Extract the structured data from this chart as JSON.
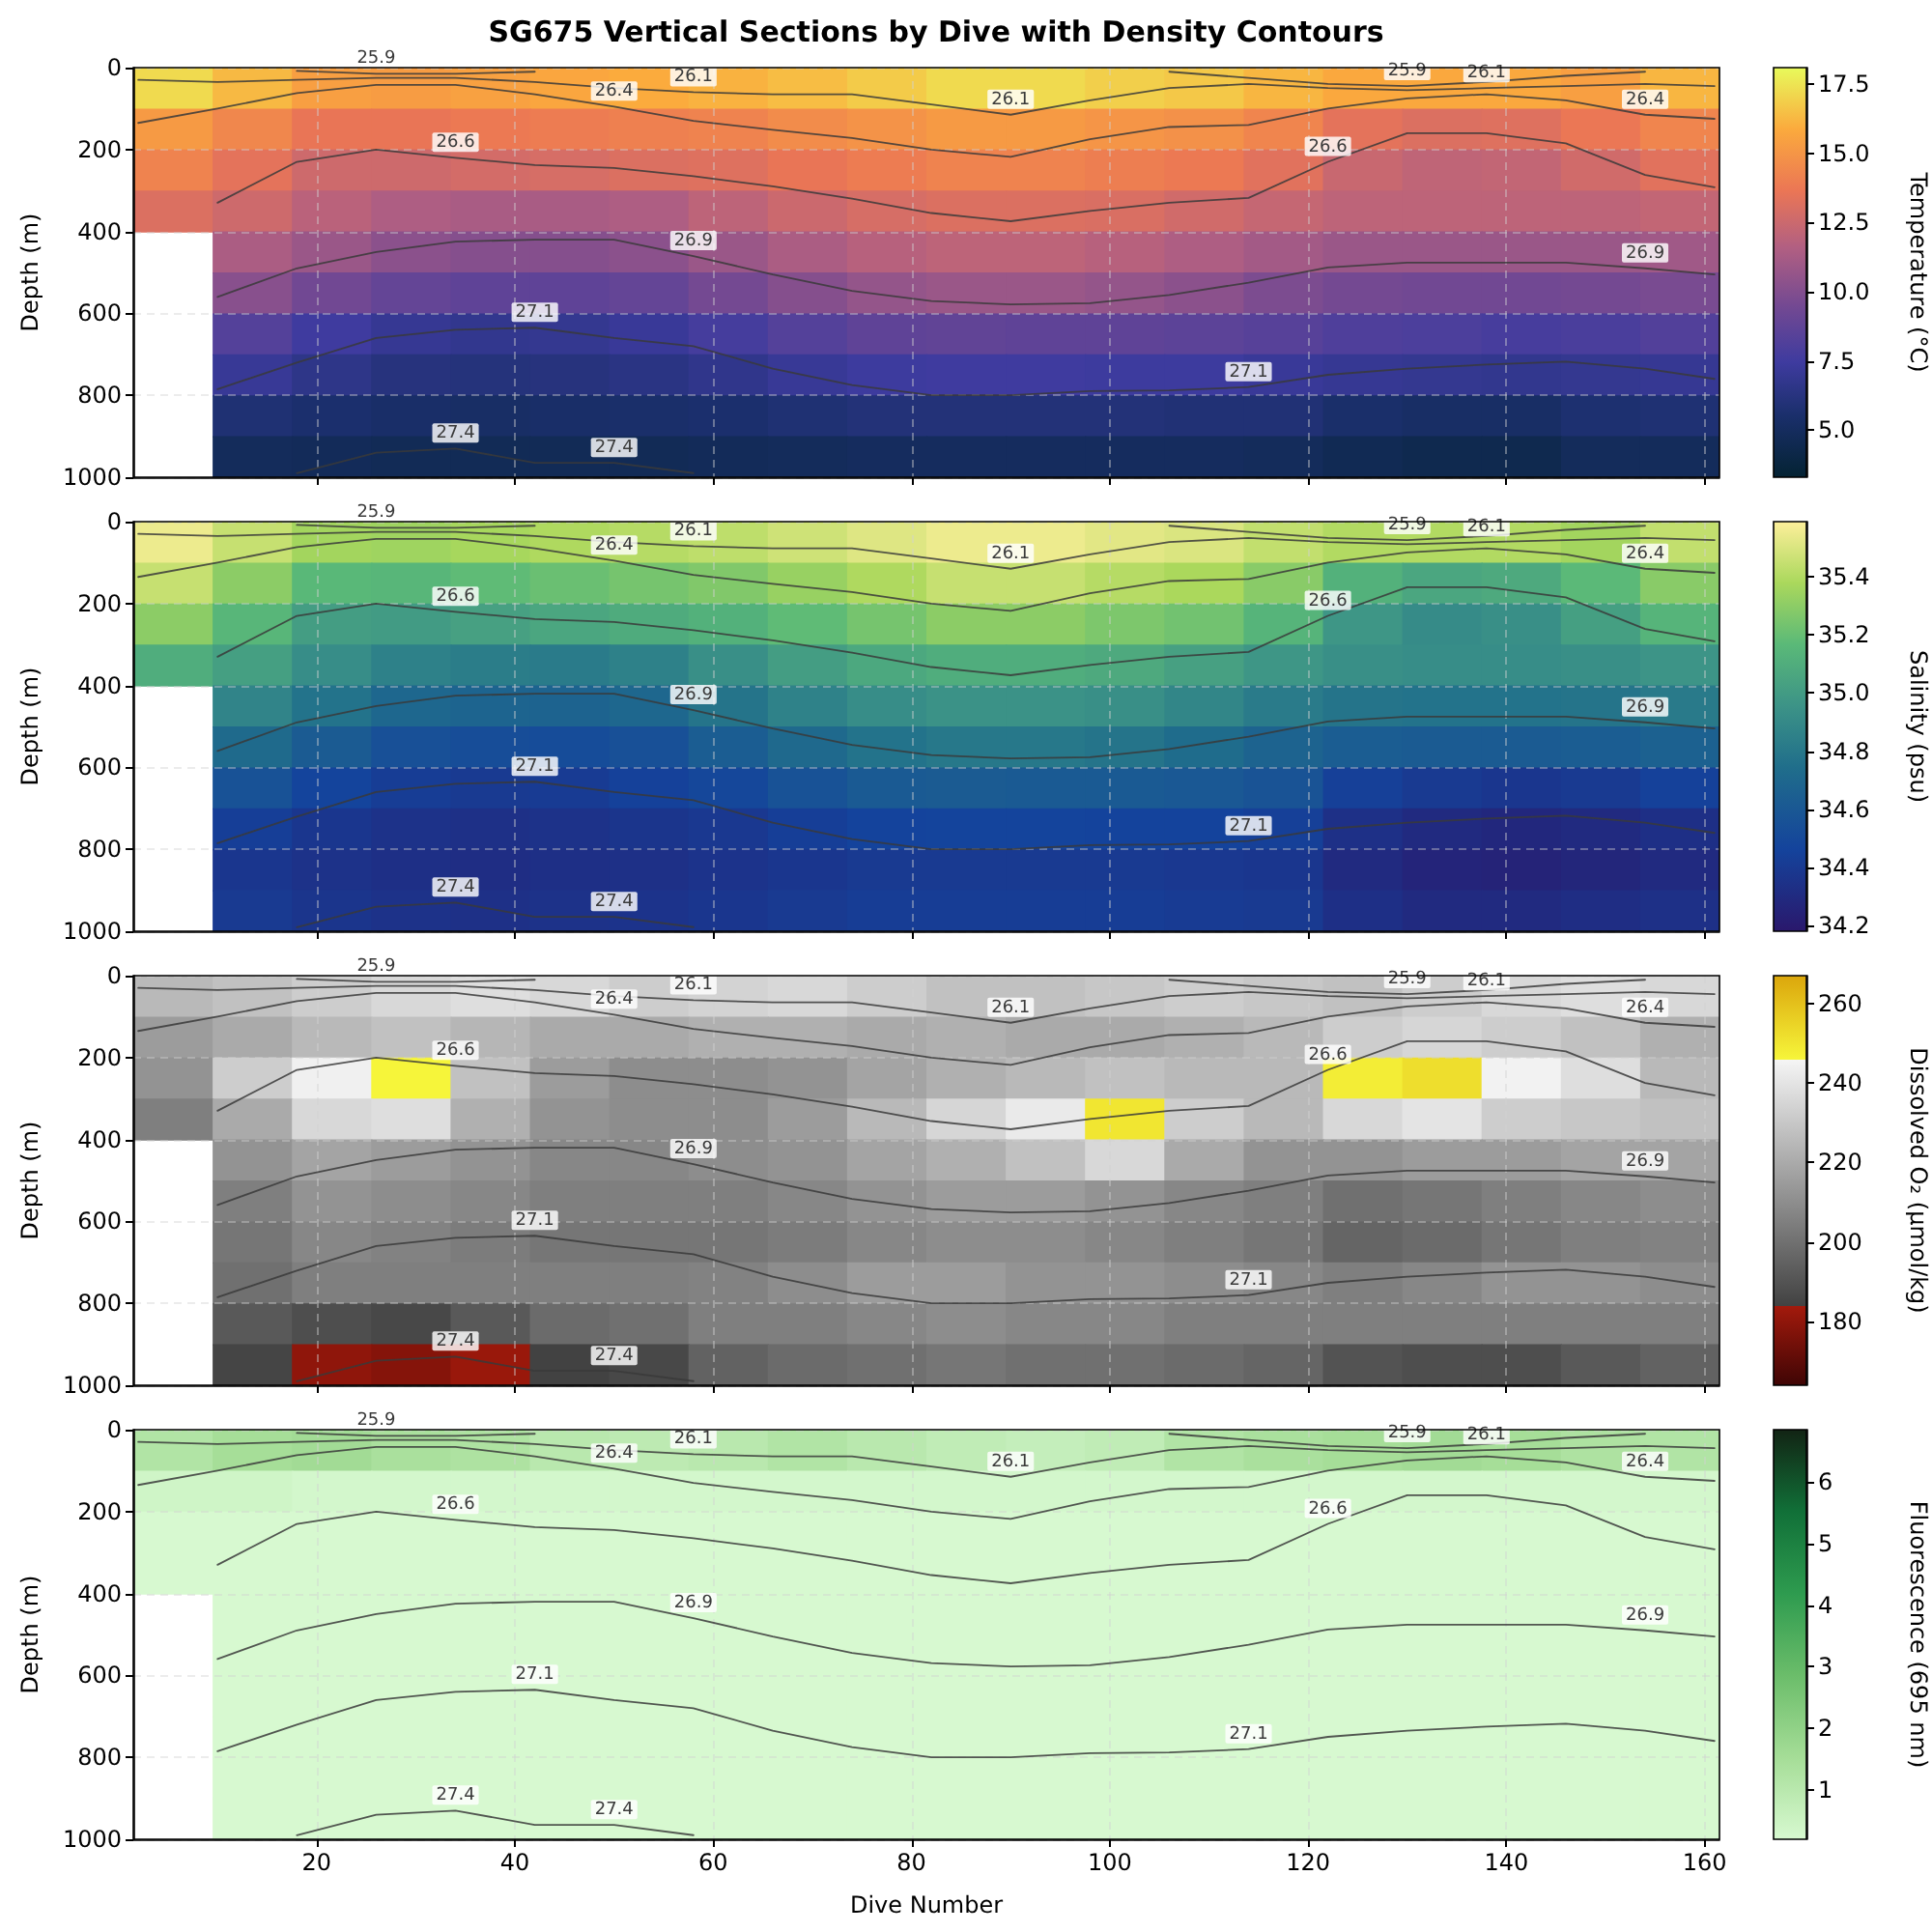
{
  "chart_data": [
    {
      "type": "heatmap",
      "title": "SG675 Vertical Sections by Dive with Density Contours",
      "ylabel": "Depth (m)",
      "clabel": "Temperature (°C)",
      "x": [
        5.5,
        13.5,
        21.5,
        29.5,
        37.5,
        45.5,
        53.5,
        61.5,
        69.5,
        77.5,
        85.5,
        93.5,
        101.5,
        109.5,
        117.5,
        125.5,
        133.5,
        141.5,
        149.5,
        157.5
      ],
      "cells": [
        [
          17.2,
          16.3,
          15.4,
          15.3,
          15.5,
          15.7,
          15.9,
          16.1,
          16.4,
          16.8,
          17.2,
          17.2,
          16.9,
          16.7,
          16.2,
          15.8,
          15.8,
          15.8,
          15.4,
          16.2
        ],
        [
          15.2,
          14.4,
          13.6,
          13.6,
          13.8,
          13.9,
          14.1,
          14.2,
          14.6,
          14.9,
          15.2,
          15.2,
          15.0,
          14.8,
          14.3,
          13.4,
          13.1,
          13.2,
          13.7,
          14.3
        ],
        [
          14.2,
          13.4,
          12.6,
          12.6,
          12.8,
          12.9,
          13.1,
          13.2,
          13.6,
          13.9,
          14.2,
          14.2,
          14.0,
          13.8,
          13.3,
          12.4,
          12.1,
          12.2,
          12.7,
          13.3
        ],
        [
          13.1,
          12.6,
          11.9,
          11.5,
          11.3,
          11.3,
          11.5,
          12.0,
          12.5,
          12.9,
          13.1,
          13.1,
          13.0,
          12.7,
          12.3,
          12.0,
          12.0,
          12.0,
          12.0,
          12.2
        ],
        [
          null,
          11.4,
          10.8,
          10.3,
          10.1,
          10.1,
          10.3,
          10.8,
          11.4,
          11.8,
          12.0,
          12.0,
          11.8,
          11.5,
          11.1,
          10.8,
          10.8,
          10.8,
          10.8,
          11.0
        ],
        [
          null,
          10.2,
          9.4,
          8.9,
          8.7,
          8.7,
          8.9,
          9.5,
          10.1,
          10.6,
          10.8,
          10.8,
          10.6,
          10.3,
          9.8,
          9.5,
          9.4,
          9.4,
          9.5,
          9.7
        ],
        [
          null,
          8.3,
          7.5,
          7.0,
          6.8,
          6.9,
          7.2,
          7.7,
          8.3,
          8.7,
          8.8,
          8.7,
          8.7,
          8.6,
          8.4,
          8.1,
          8.0,
          7.8,
          7.9,
          8.2
        ],
        [
          null,
          7.1,
          6.6,
          6.2,
          6.1,
          6.2,
          6.4,
          6.7,
          7.1,
          7.4,
          7.5,
          7.5,
          7.4,
          7.4,
          7.2,
          7.0,
          6.9,
          6.8,
          6.9,
          7.0
        ],
        [
          null,
          5.8,
          5.6,
          5.4,
          5.3,
          5.4,
          5.5,
          5.6,
          5.8,
          6.0,
          6.0,
          6.0,
          6.0,
          5.9,
          5.9,
          5.5,
          5.3,
          5.3,
          5.7,
          5.8
        ],
        [
          null,
          4.9,
          4.8,
          4.7,
          4.7,
          4.7,
          4.7,
          4.8,
          4.9,
          5.0,
          5.0,
          5.0,
          5.0,
          5.0,
          4.9,
          4.6,
          4.4,
          4.4,
          4.9,
          4.9
        ]
      ],
      "clim": [
        3.3,
        18.1
      ],
      "cticks": [
        {
          "value": 5,
          "label": "5.0"
        },
        7.5,
        {
          "value": 10,
          "label": "10.0"
        },
        12.5,
        {
          "value": 15,
          "label": "15.0"
        },
        17.5
      ],
      "xlim": [
        1.5,
        161.5
      ],
      "xticks": [
        20,
        40,
        60,
        80,
        100,
        120,
        140,
        160
      ],
      "ylim": [
        1000,
        0
      ],
      "yticks": [
        0,
        200,
        400,
        600,
        800,
        1000
      ],
      "grid": true,
      "tick_labels": "y",
      "series": [
        {
          "name": "25.9",
          "type": "line",
          "color": "#3a3a3a",
          "x": [
            18,
            26,
            34,
            42,
            50,
            58,
            66,
            74,
            82,
            90,
            98,
            106,
            114,
            122,
            130,
            138,
            146,
            154
          ],
          "values": [
            8,
            15,
            15,
            10,
            null,
            null,
            null,
            null,
            null,
            null,
            null,
            10,
            25,
            40,
            45,
            35,
            20,
            10
          ]
        },
        {
          "name": "26.1",
          "type": "line",
          "color": "#3a3a3a",
          "x": [
            2,
            10,
            18,
            26,
            34,
            42,
            50,
            58,
            66,
            74,
            82,
            90,
            98,
            106,
            114,
            122,
            130,
            138,
            146,
            154,
            161
          ],
          "values": [
            30,
            35,
            30,
            25,
            25,
            35,
            50,
            60,
            65,
            65,
            90,
            115,
            80,
            50,
            40,
            50,
            55,
            50,
            45,
            40,
            45
          ]
        },
        {
          "name": "26.4",
          "type": "line",
          "color": "#3a3a3a",
          "x": [
            2,
            10,
            18,
            26,
            34,
            42,
            50,
            58,
            66,
            74,
            82,
            90,
            98,
            106,
            114,
            122,
            130,
            138,
            146,
            154,
            161
          ],
          "values": [
            135,
            100,
            62,
            42,
            42,
            65,
            95,
            130,
            152,
            172,
            200,
            218,
            175,
            145,
            140,
            100,
            75,
            65,
            80,
            115,
            125
          ]
        },
        {
          "name": "26.6",
          "type": "line",
          "color": "#3a3a3a",
          "x": [
            10,
            18,
            26,
            34,
            42,
            50,
            58,
            66,
            74,
            82,
            90,
            98,
            106,
            114,
            122,
            130,
            138,
            146,
            154,
            161
          ],
          "values": [
            330,
            230,
            200,
            220,
            238,
            245,
            265,
            290,
            320,
            355,
            375,
            350,
            330,
            318,
            230,
            160,
            160,
            185,
            262,
            292
          ]
        },
        {
          "name": "26.9",
          "type": "line",
          "color": "#3a3a3a",
          "x": [
            10,
            18,
            26,
            34,
            42,
            50,
            58,
            66,
            74,
            82,
            90,
            98,
            106,
            114,
            122,
            130,
            138,
            146,
            154,
            161
          ],
          "values": [
            560,
            490,
            450,
            425,
            420,
            420,
            460,
            505,
            545,
            570,
            578,
            575,
            555,
            525,
            488,
            476,
            476,
            476,
            490,
            505
          ]
        },
        {
          "name": "27.1",
          "type": "line",
          "color": "#3a3a3a",
          "x": [
            10,
            18,
            26,
            34,
            42,
            50,
            58,
            66,
            74,
            82,
            90,
            98,
            106,
            114,
            122,
            130,
            138,
            146,
            154,
            161
          ],
          "values": [
            785,
            720,
            660,
            640,
            635,
            660,
            680,
            735,
            775,
            800,
            800,
            790,
            788,
            780,
            750,
            735,
            725,
            718,
            735,
            760
          ]
        },
        {
          "name": "27.4",
          "type": "line",
          "color": "#3a3a3a",
          "x": [
            18,
            26,
            34,
            42,
            50,
            58
          ],
          "values": [
            990,
            940,
            930,
            965,
            965,
            990
          ]
        }
      ]
    },
    {
      "type": "heatmap",
      "ylabel": "Depth (m)",
      "clabel": "Salinity (psu)",
      "x": [
        5.5,
        13.5,
        21.5,
        29.5,
        37.5,
        45.5,
        53.5,
        61.5,
        69.5,
        77.5,
        85.5,
        93.5,
        101.5,
        109.5,
        117.5,
        125.5,
        133.5,
        141.5,
        149.5,
        157.5
      ],
      "cells": [
        [
          35.55,
          35.45,
          35.36,
          35.35,
          35.37,
          35.39,
          35.41,
          35.43,
          35.47,
          35.51,
          35.55,
          35.55,
          35.52,
          35.5,
          35.44,
          35.4,
          35.4,
          35.4,
          35.36,
          35.44
        ],
        [
          35.45,
          35.3,
          35.16,
          35.15,
          35.18,
          35.21,
          35.24,
          35.27,
          35.33,
          35.39,
          35.45,
          35.45,
          35.41,
          35.38,
          35.29,
          35.12,
          35.06,
          35.08,
          35.17,
          35.29
        ],
        [
          35.3,
          35.15,
          35.01,
          35.0,
          35.03,
          35.06,
          35.09,
          35.12,
          35.18,
          35.24,
          35.3,
          35.3,
          35.26,
          35.23,
          35.14,
          34.97,
          34.91,
          34.93,
          35.02,
          35.14
        ],
        [
          35.1,
          35.02,
          34.92,
          34.85,
          34.83,
          34.82,
          34.85,
          34.93,
          35.01,
          35.07,
          35.1,
          35.1,
          35.08,
          35.03,
          34.97,
          34.93,
          34.92,
          34.92,
          34.93,
          34.96
        ],
        [
          null,
          34.87,
          34.77,
          34.7,
          34.68,
          34.67,
          34.7,
          34.78,
          34.86,
          34.92,
          34.95,
          34.95,
          34.93,
          34.88,
          34.82,
          34.78,
          34.77,
          34.77,
          34.78,
          34.81
        ],
        [
          null,
          34.72,
          34.62,
          34.55,
          34.53,
          34.52,
          34.55,
          34.63,
          34.71,
          34.77,
          34.8,
          34.8,
          34.78,
          34.73,
          34.67,
          34.63,
          34.62,
          34.62,
          34.63,
          34.66
        ],
        [
          null,
          34.56,
          34.47,
          34.42,
          34.4,
          34.41,
          34.45,
          34.49,
          34.56,
          34.61,
          34.62,
          34.61,
          34.61,
          34.6,
          34.57,
          34.44,
          34.4,
          34.38,
          34.4,
          34.45
        ],
        [
          null,
          34.43,
          34.38,
          34.35,
          34.34,
          34.35,
          34.37,
          34.39,
          34.43,
          34.46,
          34.47,
          34.47,
          34.46,
          34.46,
          34.44,
          34.34,
          34.3,
          34.28,
          34.3,
          34.33
        ],
        [
          null,
          34.38,
          34.35,
          34.33,
          34.32,
          34.33,
          34.34,
          34.36,
          34.38,
          34.4,
          34.4,
          34.4,
          34.4,
          34.39,
          34.38,
          34.3,
          34.26,
          34.25,
          34.27,
          34.3
        ],
        [
          null,
          34.4,
          34.37,
          34.35,
          34.34,
          34.35,
          34.36,
          34.38,
          34.4,
          34.42,
          34.42,
          34.42,
          34.42,
          34.41,
          34.4,
          34.33,
          34.3,
          34.3,
          34.32,
          34.34
        ]
      ],
      "clim": [
        34.18,
        35.59
      ],
      "cticks": [
        34.2,
        34.4,
        34.6,
        34.8,
        {
          "value": 35,
          "label": "35.0"
        },
        35.2,
        35.4
      ],
      "xlim": [
        1.5,
        161.5
      ],
      "xticks": [
        20,
        40,
        60,
        80,
        100,
        120,
        140,
        160
      ],
      "ylim": [
        1000,
        0
      ],
      "yticks": [
        0,
        200,
        400,
        600,
        800,
        1000
      ],
      "grid": true,
      "tick_labels": "y",
      "series": [
        {
          "name": "25.9",
          "type": "line",
          "color": "#3a3a3a",
          "x": [
            18,
            26,
            34,
            42,
            50,
            58,
            66,
            74,
            82,
            90,
            98,
            106,
            114,
            122,
            130,
            138,
            146,
            154
          ],
          "values": [
            8,
            15,
            15,
            10,
            null,
            null,
            null,
            null,
            null,
            null,
            null,
            10,
            25,
            40,
            45,
            35,
            20,
            10
          ]
        },
        {
          "name": "26.1",
          "type": "line",
          "color": "#3a3a3a",
          "x": [
            2,
            10,
            18,
            26,
            34,
            42,
            50,
            58,
            66,
            74,
            82,
            90,
            98,
            106,
            114,
            122,
            130,
            138,
            146,
            154,
            161
          ],
          "values": [
            30,
            35,
            30,
            25,
            25,
            35,
            50,
            60,
            65,
            65,
            90,
            115,
            80,
            50,
            40,
            50,
            55,
            50,
            45,
            40,
            45
          ]
        },
        {
          "name": "26.4",
          "type": "line",
          "color": "#3a3a3a",
          "x": [
            2,
            10,
            18,
            26,
            34,
            42,
            50,
            58,
            66,
            74,
            82,
            90,
            98,
            106,
            114,
            122,
            130,
            138,
            146,
            154,
            161
          ],
          "values": [
            135,
            100,
            62,
            42,
            42,
            65,
            95,
            130,
            152,
            172,
            200,
            218,
            175,
            145,
            140,
            100,
            75,
            65,
            80,
            115,
            125
          ]
        },
        {
          "name": "26.6",
          "type": "line",
          "color": "#3a3a3a",
          "x": [
            10,
            18,
            26,
            34,
            42,
            50,
            58,
            66,
            74,
            82,
            90,
            98,
            106,
            114,
            122,
            130,
            138,
            146,
            154,
            161
          ],
          "values": [
            330,
            230,
            200,
            220,
            238,
            245,
            265,
            290,
            320,
            355,
            375,
            350,
            330,
            318,
            230,
            160,
            160,
            185,
            262,
            292
          ]
        },
        {
          "name": "26.9",
          "type": "line",
          "color": "#3a3a3a",
          "x": [
            10,
            18,
            26,
            34,
            42,
            50,
            58,
            66,
            74,
            82,
            90,
            98,
            106,
            114,
            122,
            130,
            138,
            146,
            154,
            161
          ],
          "values": [
            560,
            490,
            450,
            425,
            420,
            420,
            460,
            505,
            545,
            570,
            578,
            575,
            555,
            525,
            488,
            476,
            476,
            476,
            490,
            505
          ]
        },
        {
          "name": "27.1",
          "type": "line",
          "color": "#3a3a3a",
          "x": [
            10,
            18,
            26,
            34,
            42,
            50,
            58,
            66,
            74,
            82,
            90,
            98,
            106,
            114,
            122,
            130,
            138,
            146,
            154,
            161
          ],
          "values": [
            785,
            720,
            660,
            640,
            635,
            660,
            680,
            735,
            775,
            800,
            800,
            790,
            788,
            780,
            750,
            735,
            725,
            718,
            735,
            760
          ]
        },
        {
          "name": "27.4",
          "type": "line",
          "color": "#3a3a3a",
          "x": [
            18,
            26,
            34,
            42,
            50,
            58
          ],
          "values": [
            990,
            940,
            930,
            965,
            965,
            990
          ]
        }
      ]
    },
    {
      "type": "heatmap",
      "ylabel": "Depth (m)",
      "clabel": "Dissolved O₂ (μmol/kg)",
      "x": [
        5.5,
        13.5,
        21.5,
        29.5,
        37.5,
        45.5,
        53.5,
        61.5,
        69.5,
        77.5,
        85.5,
        93.5,
        101.5,
        109.5,
        117.5,
        125.5,
        133.5,
        141.5,
        149.5,
        157.5
      ],
      "cells": [
        [
          225,
          228,
          232,
          236,
          238,
          236,
          232,
          234,
          236,
          232,
          228,
          228,
          230,
          232,
          230,
          228,
          232,
          236,
          238,
          236
        ],
        [
          215,
          220,
          225,
          228,
          224,
          220,
          220,
          222,
          222,
          220,
          222,
          220,
          220,
          222,
          225,
          232,
          235,
          232,
          228,
          222
        ],
        [
          212,
          232,
          244,
          246,
          228,
          215,
          210,
          210,
          212,
          218,
          222,
          225,
          228,
          225,
          225,
          248,
          252,
          245,
          238,
          225
        ],
        [
          205,
          220,
          236,
          238,
          222,
          212,
          210,
          210,
          215,
          225,
          235,
          242,
          250,
          232,
          225,
          236,
          240,
          232,
          230,
          228
        ],
        [
          null,
          212,
          218,
          215,
          212,
          208,
          208,
          210,
          212,
          218,
          222,
          228,
          236,
          220,
          212,
          212,
          215,
          215,
          218,
          218
        ],
        [
          null,
          205,
          212,
          210,
          208,
          205,
          205,
          205,
          208,
          212,
          215,
          215,
          212,
          208,
          205,
          200,
          202,
          205,
          208,
          210
        ],
        [
          null,
          202,
          208,
          206,
          204,
          202,
          202,
          202,
          204,
          208,
          210,
          210,
          208,
          205,
          202,
          196,
          198,
          202,
          205,
          206
        ],
        [
          null,
          200,
          205,
          205,
          205,
          205,
          205,
          206,
          210,
          215,
          215,
          212,
          212,
          210,
          208,
          205,
          208,
          212,
          212,
          210
        ],
        [
          null,
          192,
          188,
          186,
          192,
          198,
          200,
          205,
          205,
          208,
          210,
          208,
          208,
          205,
          205,
          205,
          205,
          205,
          205,
          205
        ],
        [
          null,
          185,
          180,
          178,
          182,
          184,
          186,
          195,
          198,
          200,
          202,
          200,
          200,
          198,
          196,
          190,
          188,
          188,
          192,
          195
        ]
      ],
      "clim": [
        164,
        267
      ],
      "cticks": [
        180,
        200,
        220,
        240,
        260
      ],
      "xlim": [
        1.5,
        161.5
      ],
      "xticks": [
        20,
        40,
        60,
        80,
        100,
        120,
        140,
        160
      ],
      "ylim": [
        1000,
        0
      ],
      "yticks": [
        0,
        200,
        400,
        600,
        800,
        1000
      ],
      "grid": true,
      "tick_labels": "y",
      "series": [
        {
          "name": "25.9",
          "type": "line",
          "color": "#3a3a3a",
          "x": [
            18,
            26,
            34,
            42,
            50,
            58,
            66,
            74,
            82,
            90,
            98,
            106,
            114,
            122,
            130,
            138,
            146,
            154
          ],
          "values": [
            8,
            15,
            15,
            10,
            null,
            null,
            null,
            null,
            null,
            null,
            null,
            10,
            25,
            40,
            45,
            35,
            20,
            10
          ]
        },
        {
          "name": "26.1",
          "type": "line",
          "color": "#3a3a3a",
          "x": [
            2,
            10,
            18,
            26,
            34,
            42,
            50,
            58,
            66,
            74,
            82,
            90,
            98,
            106,
            114,
            122,
            130,
            138,
            146,
            154,
            161
          ],
          "values": [
            30,
            35,
            30,
            25,
            25,
            35,
            50,
            60,
            65,
            65,
            90,
            115,
            80,
            50,
            40,
            50,
            55,
            50,
            45,
            40,
            45
          ]
        },
        {
          "name": "26.4",
          "type": "line",
          "color": "#3a3a3a",
          "x": [
            2,
            10,
            18,
            26,
            34,
            42,
            50,
            58,
            66,
            74,
            82,
            90,
            98,
            106,
            114,
            122,
            130,
            138,
            146,
            154,
            161
          ],
          "values": [
            135,
            100,
            62,
            42,
            42,
            65,
            95,
            130,
            152,
            172,
            200,
            218,
            175,
            145,
            140,
            100,
            75,
            65,
            80,
            115,
            125
          ]
        },
        {
          "name": "26.6",
          "type": "line",
          "color": "#3a3a3a",
          "x": [
            10,
            18,
            26,
            34,
            42,
            50,
            58,
            66,
            74,
            82,
            90,
            98,
            106,
            114,
            122,
            130,
            138,
            146,
            154,
            161
          ],
          "values": [
            330,
            230,
            200,
            220,
            238,
            245,
            265,
            290,
            320,
            355,
            375,
            350,
            330,
            318,
            230,
            160,
            160,
            185,
            262,
            292
          ]
        },
        {
          "name": "26.9",
          "type": "line",
          "color": "#3a3a3a",
          "x": [
            10,
            18,
            26,
            34,
            42,
            50,
            58,
            66,
            74,
            82,
            90,
            98,
            106,
            114,
            122,
            130,
            138,
            146,
            154,
            161
          ],
          "values": [
            560,
            490,
            450,
            425,
            420,
            420,
            460,
            505,
            545,
            570,
            578,
            575,
            555,
            525,
            488,
            476,
            476,
            476,
            490,
            505
          ]
        },
        {
          "name": "27.1",
          "type": "line",
          "color": "#3a3a3a",
          "x": [
            10,
            18,
            26,
            34,
            42,
            50,
            58,
            66,
            74,
            82,
            90,
            98,
            106,
            114,
            122,
            130,
            138,
            146,
            154,
            161
          ],
          "values": [
            785,
            720,
            660,
            640,
            635,
            660,
            680,
            735,
            775,
            800,
            800,
            790,
            788,
            780,
            750,
            735,
            725,
            718,
            735,
            760
          ]
        },
        {
          "name": "27.4",
          "type": "line",
          "color": "#3a3a3a",
          "x": [
            18,
            26,
            34,
            42,
            50,
            58
          ],
          "values": [
            990,
            940,
            930,
            965,
            965,
            990
          ]
        }
      ]
    },
    {
      "type": "heatmap",
      "xlabel": "Dive Number",
      "ylabel": "Depth (m)",
      "clabel": "Fluorescence (695 nm)",
      "x": [
        5.5,
        13.5,
        21.5,
        29.5,
        37.5,
        45.5,
        53.5,
        61.5,
        69.5,
        77.5,
        85.5,
        93.5,
        101.5,
        109.5,
        117.5,
        125.5,
        133.5,
        141.5,
        149.5,
        157.5
      ],
      "cells": [
        [
          1.2,
          1.5,
          1.6,
          1.4,
          1.3,
          1.0,
          0.9,
          1.0,
          1.2,
          1.0,
          0.8,
          0.7,
          0.8,
          1.2,
          1.4,
          1.5,
          1.6,
          1.5,
          1.3,
          1.2
        ],
        [
          0.4,
          0.4,
          0.3,
          0.3,
          0.3,
          0.3,
          0.3,
          0.3,
          0.3,
          0.3,
          0.3,
          0.3,
          0.3,
          0.3,
          0.3,
          0.3,
          0.3,
          0.3,
          0.3,
          0.3
        ],
        [
          0.2,
          0.2,
          0.2,
          0.2,
          0.2,
          0.2,
          0.2,
          0.2,
          0.2,
          0.2,
          0.2,
          0.2,
          0.2,
          0.2,
          0.2,
          0.2,
          0.2,
          0.2,
          0.2,
          0.2
        ],
        [
          0.2,
          0.2,
          0.2,
          0.2,
          0.2,
          0.2,
          0.2,
          0.2,
          0.2,
          0.2,
          0.2,
          0.2,
          0.2,
          0.2,
          0.2,
          0.2,
          0.2,
          0.2,
          0.2,
          0.2
        ],
        [
          null,
          0.2,
          0.2,
          0.2,
          0.2,
          0.2,
          0.2,
          0.2,
          0.2,
          0.2,
          0.2,
          0.2,
          0.2,
          0.2,
          0.2,
          0.2,
          0.2,
          0.2,
          0.2,
          0.2
        ],
        [
          null,
          0.2,
          0.2,
          0.2,
          0.2,
          0.2,
          0.2,
          0.2,
          0.2,
          0.2,
          0.2,
          0.2,
          0.2,
          0.2,
          0.2,
          0.2,
          0.2,
          0.2,
          0.2,
          0.2
        ],
        [
          null,
          0.2,
          0.2,
          0.2,
          0.2,
          0.2,
          0.2,
          0.2,
          0.2,
          0.2,
          0.2,
          0.2,
          0.2,
          0.2,
          0.2,
          0.2,
          0.2,
          0.2,
          0.2,
          0.2
        ],
        [
          null,
          0.2,
          0.2,
          0.2,
          0.2,
          0.2,
          0.2,
          0.2,
          0.2,
          0.2,
          0.2,
          0.2,
          0.2,
          0.2,
          0.2,
          0.2,
          0.2,
          0.2,
          0.2,
          0.2
        ],
        [
          null,
          0.2,
          0.2,
          0.2,
          0.2,
          0.2,
          0.2,
          0.2,
          0.2,
          0.2,
          0.2,
          0.2,
          0.2,
          0.2,
          0.2,
          0.2,
          0.2,
          0.2,
          0.2,
          0.2
        ],
        [
          null,
          0.2,
          0.2,
          0.2,
          0.2,
          0.2,
          0.2,
          0.2,
          0.2,
          0.2,
          0.2,
          0.2,
          0.2,
          0.2,
          0.2,
          0.2,
          0.2,
          0.2,
          0.2,
          0.2
        ]
      ],
      "clim": [
        0.2,
        6.85
      ],
      "cticks": [
        1,
        2,
        3,
        4,
        5,
        6
      ],
      "xlim": [
        1.5,
        161.5
      ],
      "xticks": [
        20,
        40,
        60,
        80,
        100,
        120,
        140,
        160
      ],
      "ylim": [
        1000,
        0
      ],
      "yticks": [
        0,
        200,
        400,
        600,
        800,
        1000
      ],
      "grid": true,
      "series": [
        {
          "name": "25.9",
          "type": "line",
          "color": "#3a3a3a",
          "x": [
            18,
            26,
            34,
            42,
            50,
            58,
            66,
            74,
            82,
            90,
            98,
            106,
            114,
            122,
            130,
            138,
            146,
            154
          ],
          "values": [
            8,
            15,
            15,
            10,
            null,
            null,
            null,
            null,
            null,
            null,
            null,
            10,
            25,
            40,
            45,
            35,
            20,
            10
          ]
        },
        {
          "name": "26.1",
          "type": "line",
          "color": "#3a3a3a",
          "x": [
            2,
            10,
            18,
            26,
            34,
            42,
            50,
            58,
            66,
            74,
            82,
            90,
            98,
            106,
            114,
            122,
            130,
            138,
            146,
            154,
            161
          ],
          "values": [
            30,
            35,
            30,
            25,
            25,
            35,
            50,
            60,
            65,
            65,
            90,
            115,
            80,
            50,
            40,
            50,
            55,
            50,
            45,
            40,
            45
          ]
        },
        {
          "name": "26.4",
          "type": "line",
          "color": "#3a3a3a",
          "x": [
            2,
            10,
            18,
            26,
            34,
            42,
            50,
            58,
            66,
            74,
            82,
            90,
            98,
            106,
            114,
            122,
            130,
            138,
            146,
            154,
            161
          ],
          "values": [
            135,
            100,
            62,
            42,
            42,
            65,
            95,
            130,
            152,
            172,
            200,
            218,
            175,
            145,
            140,
            100,
            75,
            65,
            80,
            115,
            125
          ]
        },
        {
          "name": "26.6",
          "type": "line",
          "color": "#3a3a3a",
          "x": [
            10,
            18,
            26,
            34,
            42,
            50,
            58,
            66,
            74,
            82,
            90,
            98,
            106,
            114,
            122,
            130,
            138,
            146,
            154,
            161
          ],
          "values": [
            330,
            230,
            200,
            220,
            238,
            245,
            265,
            290,
            320,
            355,
            375,
            350,
            330,
            318,
            230,
            160,
            160,
            185,
            262,
            292
          ]
        },
        {
          "name": "26.9",
          "type": "line",
          "color": "#3a3a3a",
          "x": [
            10,
            18,
            26,
            34,
            42,
            50,
            58,
            66,
            74,
            82,
            90,
            98,
            106,
            114,
            122,
            130,
            138,
            146,
            154,
            161
          ],
          "values": [
            560,
            490,
            450,
            425,
            420,
            420,
            460,
            505,
            545,
            570,
            578,
            575,
            555,
            525,
            488,
            476,
            476,
            476,
            490,
            505
          ]
        },
        {
          "name": "27.1",
          "type": "line",
          "color": "#3a3a3a",
          "x": [
            10,
            18,
            26,
            34,
            42,
            50,
            58,
            66,
            74,
            82,
            90,
            98,
            106,
            114,
            122,
            130,
            138,
            146,
            154,
            161
          ],
          "values": [
            785,
            720,
            660,
            640,
            635,
            660,
            680,
            735,
            775,
            800,
            800,
            790,
            788,
            780,
            750,
            735,
            725,
            718,
            735,
            760
          ]
        },
        {
          "name": "27.4",
          "type": "line",
          "color": "#3a3a3a",
          "x": [
            18,
            26,
            34,
            42,
            50,
            58
          ],
          "values": [
            990,
            940,
            930,
            965,
            965,
            990
          ]
        }
      ]
    }
  ]
}
